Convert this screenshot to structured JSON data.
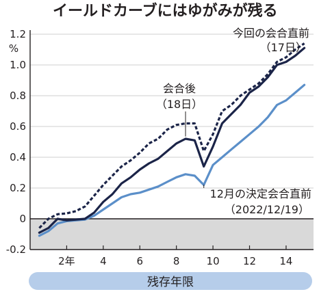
{
  "chart_data": {
    "type": "line",
    "title": "イールドカーブにはゆがみが残る",
    "ylabel": "%",
    "xlabel": "残存年限",
    "ylim": [
      -0.2,
      1.2
    ],
    "xlim": [
      0,
      15.5
    ],
    "yticks": [
      "1.2",
      "1.0",
      "0.8",
      "0.6",
      "0.4",
      "0.2",
      "0",
      "-0.2"
    ],
    "ytick_values": [
      1.2,
      1.0,
      0.8,
      0.6,
      0.4,
      0.2,
      0,
      -0.2
    ],
    "xticks": [
      "2年",
      "4",
      "6",
      "8",
      "10",
      "12",
      "14"
    ],
    "xtick_values": [
      2,
      4,
      6,
      8,
      10,
      12,
      14
    ],
    "grid": true,
    "colors": {
      "navy": "#1b2448",
      "blue": "#5b8fc9",
      "band": "#b6cdea",
      "negative_fill": "#d9d9d9"
    },
    "series": [
      {
        "name": "今回の会合直前（17日）",
        "style": "dotted",
        "color": "#1b2448",
        "x": [
          0.5,
          1,
          1.5,
          2,
          2.5,
          3,
          3.5,
          4,
          4.5,
          5,
          5.5,
          6,
          6.5,
          7,
          7.5,
          8,
          8.5,
          9,
          9.5,
          10,
          10.5,
          11,
          11.5,
          12,
          12.5,
          13,
          13.5,
          14,
          14.5,
          15
        ],
        "y": [
          -0.06,
          0.0,
          0.03,
          0.035,
          0.05,
          0.08,
          0.15,
          0.22,
          0.28,
          0.34,
          0.38,
          0.43,
          0.49,
          0.52,
          0.58,
          0.61,
          0.62,
          0.62,
          0.44,
          0.55,
          0.7,
          0.74,
          0.8,
          0.84,
          0.88,
          0.94,
          1.02,
          1.05,
          1.1,
          1.14
        ]
      },
      {
        "name": "会合後（18日）",
        "style": "solid",
        "color": "#1b2448",
        "x": [
          0.5,
          1,
          1.5,
          2,
          2.5,
          3,
          3.5,
          4,
          4.5,
          5,
          5.5,
          6,
          6.5,
          7,
          7.5,
          8,
          8.5,
          9,
          9.5,
          10,
          10.5,
          11,
          11.5,
          12,
          12.5,
          13,
          13.5,
          14,
          14.5,
          15
        ],
        "y": [
          -0.09,
          -0.06,
          0.0,
          -0.01,
          -0.005,
          0.0,
          0.04,
          0.11,
          0.16,
          0.23,
          0.27,
          0.32,
          0.36,
          0.39,
          0.44,
          0.49,
          0.52,
          0.51,
          0.34,
          0.47,
          0.62,
          0.68,
          0.74,
          0.82,
          0.86,
          0.92,
          1.0,
          1.02,
          1.06,
          1.11
        ]
      },
      {
        "name": "12月の決定会合直前（2022/12/19）",
        "style": "solid",
        "color": "#5b8fc9",
        "x": [
          0.5,
          1,
          1.5,
          2,
          2.5,
          3,
          3.5,
          4,
          4.5,
          5,
          5.5,
          6,
          6.5,
          7,
          7.5,
          8,
          8.5,
          9,
          9.5,
          10,
          10.5,
          11,
          11.5,
          12,
          12.5,
          13,
          13.5,
          14,
          14.5,
          15
        ],
        "y": [
          -0.11,
          -0.08,
          -0.03,
          -0.015,
          -0.01,
          -0.005,
          0.02,
          0.06,
          0.1,
          0.14,
          0.16,
          0.17,
          0.19,
          0.21,
          0.24,
          0.27,
          0.29,
          0.28,
          0.22,
          0.35,
          0.4,
          0.45,
          0.5,
          0.55,
          0.6,
          0.66,
          0.74,
          0.77,
          0.82,
          0.87
        ]
      }
    ],
    "annotations": {
      "current": [
        "今回の会合直前",
        "（17日）"
      ],
      "after": [
        "会合後",
        "（18日）"
      ],
      "december": [
        "12月の決定会合直前",
        "（2022/12/19）"
      ]
    }
  }
}
